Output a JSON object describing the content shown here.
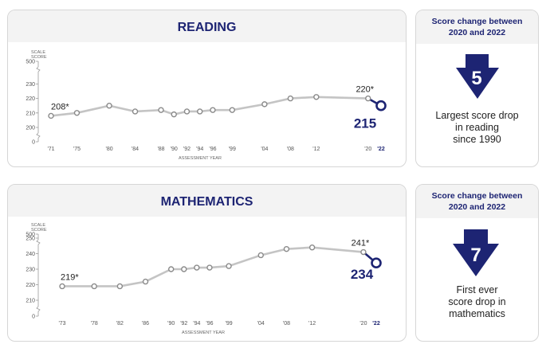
{
  "reading": {
    "title": "READING",
    "side": {
      "heading_line1": "Score change between",
      "heading_line2": "2020 and 2022",
      "change": "5",
      "caption_lines": [
        "Largest score drop",
        "in reading",
        "since 1990"
      ]
    }
  },
  "math": {
    "title": "MATHEMATICS",
    "side": {
      "heading_line1": "Score change between",
      "heading_line2": "2020 and 2022",
      "change": "7",
      "caption_lines": [
        "First ever",
        "score drop in",
        "mathematics"
      ]
    }
  },
  "colors": {
    "navy": "#1d2473",
    "line": "#c4c4c4",
    "marker_stroke": "#8a8a8a"
  },
  "chart_data": [
    {
      "type": "line",
      "title": "READING",
      "ylabel_lines": [
        "SCALE",
        "SCORE"
      ],
      "xlabel": "ASSESSMENT YEAR",
      "y_ticks": [
        0,
        200,
        210,
        220,
        230,
        500
      ],
      "y_tick_labels": [
        "0",
        "200",
        "210",
        "220",
        "230",
        "500"
      ],
      "axis_break": true,
      "x": [
        1971,
        1975,
        1980,
        1984,
        1988,
        1990,
        1992,
        1994,
        1996,
        1999,
        2004,
        2008,
        2012,
        2020
      ],
      "x_tick_labels": [
        "'71",
        "'75",
        "'80",
        "'84",
        "'88",
        "'90",
        "'92",
        "'94",
        "'96",
        "'99",
        "'04",
        "'08",
        "'12",
        "'20"
      ],
      "values": [
        208,
        210,
        215,
        211,
        212,
        209,
        211,
        211,
        212,
        212,
        216,
        220,
        221,
        220
      ],
      "final": {
        "x": 2022,
        "tick_label": "'22",
        "value": 215,
        "label": "215"
      },
      "annotations": [
        {
          "x": 1971,
          "text": "208*"
        },
        {
          "x": 2020,
          "text": "220*"
        }
      ]
    },
    {
      "type": "line",
      "title": "MATHEMATICS",
      "ylabel_lines": [
        "SCALE",
        "SCORE"
      ],
      "xlabel": "ASSESSMENT YEAR",
      "y_ticks": [
        0,
        210,
        220,
        230,
        240,
        250,
        500
      ],
      "y_tick_labels": [
        "0",
        "210",
        "220",
        "230",
        "240",
        "250",
        "500"
      ],
      "axis_break": true,
      "x": [
        1973,
        1978,
        1982,
        1986,
        1990,
        1992,
        1994,
        1996,
        1999,
        2004,
        2008,
        2012,
        2020
      ],
      "x_tick_labels": [
        "'73",
        "'78",
        "'82",
        "'86",
        "'90",
        "'92",
        "'94",
        "'96",
        "'99",
        "'04",
        "'08",
        "'12",
        "'20"
      ],
      "values": [
        219,
        219,
        219,
        222,
        230,
        230,
        231,
        231,
        232,
        239,
        243,
        244,
        241
      ],
      "final": {
        "x": 2022,
        "tick_label": "'22",
        "value": 234,
        "label": "234"
      },
      "annotations": [
        {
          "x": 1973,
          "text": "219*"
        },
        {
          "x": 2020,
          "text": "241*"
        }
      ]
    }
  ]
}
